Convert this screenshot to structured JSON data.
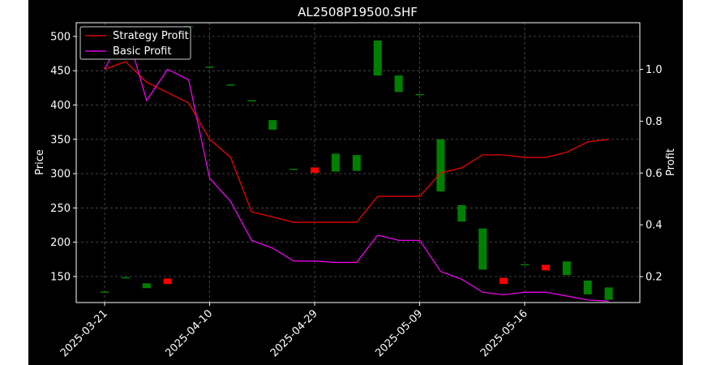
{
  "chart_data": {
    "type": "candlestick-with-lines",
    "title": "AL2508P19500.SHF",
    "ylabel_left": "Price",
    "ylabel_right": "Profit",
    "xlabel": "",
    "grid": true,
    "legend_position": "top-left",
    "ylim_left": [
      112,
      520
    ],
    "ylim_right": [
      0.1,
      1.18
    ],
    "yticks_left": [
      150,
      200,
      250,
      300,
      350,
      400,
      450,
      500
    ],
    "yticks_right": [
      0.2,
      0.4,
      0.6,
      0.8,
      1.0
    ],
    "xtick_labels": [
      "2025-03-21",
      "2025-04-10",
      "2025-04-29",
      "2025-05-09",
      "2025-05-16"
    ],
    "xtick_index": [
      0,
      5,
      10,
      15,
      20
    ],
    "colors": {
      "up": "#008000",
      "down": "#ff0000",
      "strategy": "#ff0000",
      "basic": "#ff00ff"
    },
    "candles": [
      {
        "open": 128,
        "close": 128
      },
      {
        "open": 149,
        "close": 149
      },
      {
        "open": 133,
        "close": 140
      },
      {
        "open": 147,
        "close": 139
      },
      {
        "open": 515,
        "close": 515
      },
      {
        "open": 456,
        "close": 456
      },
      {
        "open": 430,
        "close": 430
      },
      {
        "open": 407,
        "close": 407
      },
      {
        "open": 364,
        "close": 378
      },
      {
        "open": 307,
        "close": 307
      },
      {
        "open": 309,
        "close": 301
      },
      {
        "open": 303,
        "close": 329
      },
      {
        "open": 304,
        "close": 327
      },
      {
        "open": 443,
        "close": 494
      },
      {
        "open": 419,
        "close": 443
      },
      {
        "open": 416,
        "close": 416
      },
      {
        "open": 274,
        "close": 350
      },
      {
        "open": 230,
        "close": 254
      },
      {
        "open": 160,
        "close": 220
      },
      {
        "open": 148,
        "close": 139
      },
      {
        "open": 168,
        "close": 168
      },
      {
        "open": 167,
        "close": 159
      },
      {
        "open": 152,
        "close": 172
      },
      {
        "open": 124,
        "close": 144
      },
      {
        "open": 116,
        "close": 134
      }
    ],
    "series": [
      {
        "name": "Strategy Profit",
        "values": [
          1.0,
          1.03,
          0.95,
          0.91,
          0.87,
          0.73,
          0.66,
          0.45,
          0.43,
          0.41,
          0.41,
          0.41,
          0.41,
          0.51,
          0.51,
          0.51,
          0.6,
          0.62,
          0.67,
          0.67,
          0.66,
          0.66,
          0.68,
          0.72,
          0.73
        ]
      },
      {
        "name": "Basic Profit",
        "values": [
          1.0,
          1.16,
          0.88,
          1.0,
          0.96,
          0.58,
          0.49,
          0.34,
          0.31,
          0.26,
          0.26,
          0.255,
          0.255,
          0.36,
          0.34,
          0.34,
          0.22,
          0.19,
          0.14,
          0.13,
          0.14,
          0.14,
          0.125,
          0.11,
          0.105
        ]
      }
    ]
  }
}
